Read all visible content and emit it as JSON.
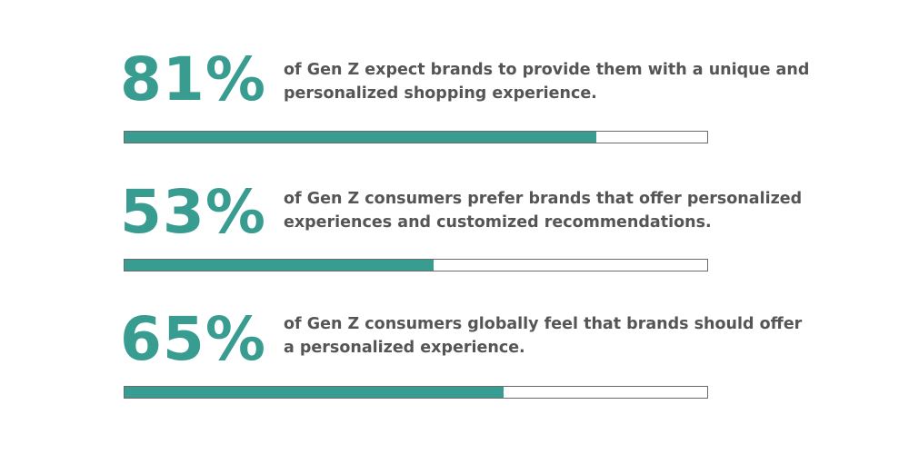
{
  "chart_data": {
    "type": "bar",
    "orientation": "horizontal",
    "max": 100,
    "colors": {
      "fill": "#389d90",
      "track": "#ffffff",
      "border": "#6b6b6b",
      "text": "#555555"
    },
    "items": [
      {
        "value": 81,
        "label": "81%",
        "text": "of Gen Z expect brands to provide them with a unique and personalized shopping experience."
      },
      {
        "value": 53,
        "label": "53%",
        "text": "of Gen Z consumers prefer brands that offer personalized experiences and customized recommendations."
      },
      {
        "value": 65,
        "label": "65%",
        "text": "of Gen Z consumers globally feel that brands should offer a personalized experience."
      }
    ]
  }
}
